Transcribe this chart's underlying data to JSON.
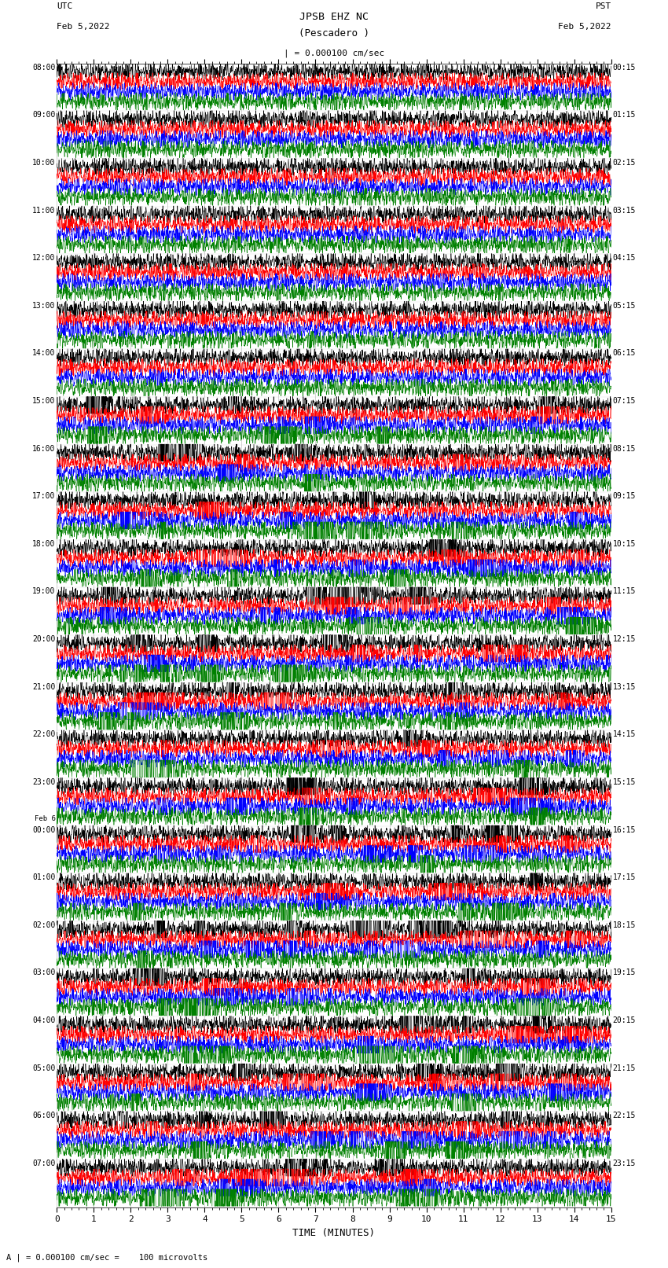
{
  "title_line1": "JPSB EHZ NC",
  "title_line2": "(Pescadero )",
  "scale_label": "| = 0.000100 cm/sec",
  "left_header_line1": "UTC",
  "left_header_line2": "Feb 5,2022",
  "right_header_line1": "PST",
  "right_header_line2": "Feb 5,2022",
  "bottom_label": "TIME (MINUTES)",
  "bottom_note": "A | = 0.000100 cm/sec =    100 microvolts",
  "xlabel_ticks": [
    0,
    1,
    2,
    3,
    4,
    5,
    6,
    7,
    8,
    9,
    10,
    11,
    12,
    13,
    14,
    15
  ],
  "left_times": [
    "08:00",
    "09:00",
    "10:00",
    "11:00",
    "12:00",
    "13:00",
    "14:00",
    "15:00",
    "16:00",
    "17:00",
    "18:00",
    "19:00",
    "20:00",
    "21:00",
    "22:00",
    "23:00",
    "Feb 6\n00:00",
    "01:00",
    "02:00",
    "03:00",
    "04:00",
    "05:00",
    "06:00",
    "07:00"
  ],
  "right_times": [
    "00:15",
    "01:15",
    "02:15",
    "03:15",
    "04:15",
    "05:15",
    "06:15",
    "07:15",
    "08:15",
    "09:15",
    "10:15",
    "11:15",
    "12:15",
    "13:15",
    "14:15",
    "15:15",
    "16:15",
    "17:15",
    "18:15",
    "19:15",
    "20:15",
    "21:15",
    "22:15",
    "23:15"
  ],
  "n_rows": 24,
  "traces_per_row": 4,
  "trace_colors": [
    "black",
    "red",
    "blue",
    "green"
  ],
  "bg_color": "white",
  "grid_color": "#aaaaaa",
  "figure_width": 8.5,
  "figure_height": 16.13
}
